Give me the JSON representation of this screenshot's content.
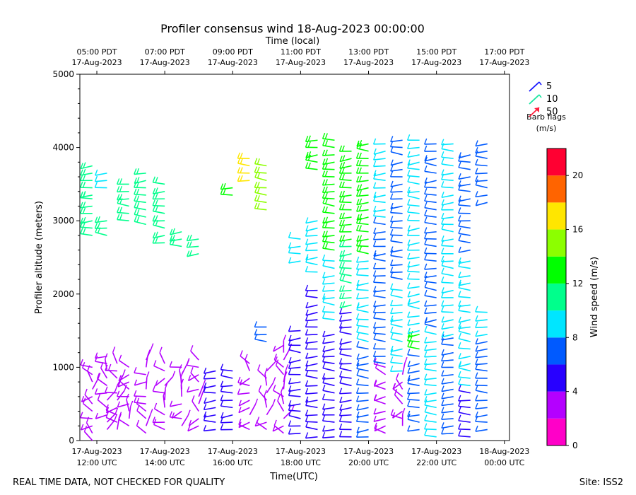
{
  "chart_data": {
    "type": "wind_barb_profile",
    "title": "Profiler consensus wind 18-Aug-2023 00:00:00",
    "top_axis_label": "Time (local)",
    "xlabel": "Time(UTC)",
    "ylabel": "Profiler altitude (meters)",
    "ylim": [
      0,
      5000
    ],
    "y_ticks": [
      0,
      1000,
      2000,
      3000,
      4000,
      5000
    ],
    "xlim_utc_hours": [
      11.5,
      24.15
    ],
    "bottom_ticks": [
      {
        "hour": 12,
        "line1": "17-Aug-2023",
        "line2": "12:00 UTC"
      },
      {
        "hour": 14,
        "line1": "17-Aug-2023",
        "line2": "14:00 UTC"
      },
      {
        "hour": 16,
        "line1": "17-Aug-2023",
        "line2": "16:00 UTC"
      },
      {
        "hour": 18,
        "line1": "17-Aug-2023",
        "line2": "18:00 UTC"
      },
      {
        "hour": 20,
        "line1": "17-Aug-2023",
        "line2": "20:00 UTC"
      },
      {
        "hour": 22,
        "line1": "17-Aug-2023",
        "line2": "22:00 UTC"
      },
      {
        "hour": 24,
        "line1": "18-Aug-2023",
        "line2": "00:00 UTC"
      }
    ],
    "top_ticks": [
      {
        "hour": 12,
        "line1": "05:00 PDT",
        "line2": "17-Aug-2023"
      },
      {
        "hour": 14,
        "line1": "07:00 PDT",
        "line2": "17-Aug-2023"
      },
      {
        "hour": 16,
        "line1": "09:00 PDT",
        "line2": "17-Aug-2023"
      },
      {
        "hour": 18,
        "line1": "11:00 PDT",
        "line2": "17-Aug-2023"
      },
      {
        "hour": 20,
        "line1": "13:00 PDT",
        "line2": "17-Aug-2023"
      },
      {
        "hour": 22,
        "line1": "15:00 PDT",
        "line2": "17-Aug-2023"
      },
      {
        "hour": 24,
        "line1": "17:00 PDT",
        "line2": "17-Aug-2023"
      }
    ],
    "barb_legend": {
      "title_line1": "Barb flags",
      "title_line2": "(m/s)",
      "entries": [
        {
          "label": "5",
          "color": "#1a1aff"
        },
        {
          "label": "10",
          "color": "#19e6a0"
        },
        {
          "label": "50",
          "color": "#ff1f3c"
        }
      ]
    },
    "colorbar": {
      "label": "Wind speed (m/s)",
      "min": 0,
      "max": 22,
      "ticks": [
        0,
        4,
        8,
        12,
        16,
        20
      ],
      "bins": [
        {
          "from": 0,
          "to": 2,
          "color": "#ff00c8"
        },
        {
          "from": 2,
          "to": 4,
          "color": "#b400ff"
        },
        {
          "from": 4,
          "to": 6,
          "color": "#2800ff"
        },
        {
          "from": 6,
          "to": 8,
          "color": "#005aff"
        },
        {
          "from": 8,
          "to": 10,
          "color": "#00e6ff"
        },
        {
          "from": 10,
          "to": 12,
          "color": "#00ff8c"
        },
        {
          "from": 12,
          "to": 14,
          "color": "#00ff00"
        },
        {
          "from": 14,
          "to": 16,
          "color": "#8cff00"
        },
        {
          "from": 16,
          "to": 18,
          "color": "#ffe600"
        },
        {
          "from": 18,
          "to": 20,
          "color": "#ff6400"
        },
        {
          "from": 20,
          "to": 22,
          "color": "#ff0032"
        }
      ]
    },
    "columns": [
      {
        "hour": 11.87,
        "segments": [
          {
            "z": [
              0,
              1000
            ],
            "speed": 3
          },
          {
            "z": [
              2800,
              3300
            ],
            "speed": 11
          },
          {
            "z": [
              3350,
              3800
            ],
            "speed": 10
          }
        ]
      },
      {
        "hour": 12.3,
        "segments": [
          {
            "z": [
              150,
              1150
            ],
            "speed": 3
          },
          {
            "z": [
              2800,
              3000
            ],
            "speed": 11
          },
          {
            "z": [
              3450,
              3700
            ],
            "speed": 9
          }
        ]
      },
      {
        "hour": 12.6,
        "segments": [
          {
            "z": [
              150,
              1050
            ],
            "speed": 3
          }
        ]
      },
      {
        "hour": 12.95,
        "segments": [
          {
            "z": [
              200,
              1000
            ],
            "speed": 2
          },
          {
            "z": [
              3000,
              3500
            ],
            "speed": 10
          }
        ]
      },
      {
        "hour": 13.45,
        "segments": [
          {
            "z": [
              100,
              1100
            ],
            "speed": 3
          },
          {
            "z": [
              2950,
              3700
            ],
            "speed": 10
          }
        ]
      },
      {
        "hour": 14.0,
        "segments": [
          {
            "z": [
              150,
              1100
            ],
            "speed": 3
          },
          {
            "z": [
              2700,
              3500
            ],
            "speed": 10
          }
        ]
      },
      {
        "hour": 14.5,
        "segments": [
          {
            "z": [
              200,
              1050
            ],
            "speed": 3
          },
          {
            "z": [
              2650,
              2900
            ],
            "speed": 10
          }
        ]
      },
      {
        "hour": 15.0,
        "segments": [
          {
            "z": [
              200,
              1100
            ],
            "speed": 3
          },
          {
            "z": [
              2550,
              2800
            ],
            "speed": 10
          }
        ]
      },
      {
        "hour": 15.5,
        "segments": [
          {
            "z": [
              150,
              1000
            ],
            "speed": 5
          }
        ]
      },
      {
        "hour": 16.0,
        "segments": [
          {
            "z": [
              150,
              950
            ],
            "speed": 5
          },
          {
            "z": [
              3350,
              3500
            ],
            "speed": 13
          }
        ]
      },
      {
        "hour": 16.5,
        "segments": [
          {
            "z": [
              150,
              1100
            ],
            "speed": 2
          },
          {
            "z": [
              3550,
              3850
            ],
            "speed": 16
          }
        ]
      },
      {
        "hour": 17.0,
        "segments": [
          {
            "z": [
              150,
              950
            ],
            "speed": 2
          },
          {
            "z": [
              1350,
              1600
            ],
            "speed": 6
          },
          {
            "z": [
              3150,
              3750
            ],
            "speed": 14
          }
        ]
      },
      {
        "hour": 17.5,
        "segments": [
          {
            "z": [
              100,
              1300
            ],
            "speed": 3
          }
        ]
      },
      {
        "hour": 18.0,
        "segments": [
          {
            "z": [
              100,
              1500
            ],
            "speed": 4
          },
          {
            "z": [
              2450,
              2750
            ],
            "speed": 9
          }
        ]
      },
      {
        "hour": 18.5,
        "segments": [
          {
            "z": [
              50,
              2100
            ],
            "speed": 5
          },
          {
            "z": [
              2300,
              3000
            ],
            "speed": 9
          },
          {
            "z": [
              3700,
              4100
            ],
            "speed": 13
          }
        ]
      },
      {
        "hour": 19.0,
        "segments": [
          {
            "z": [
              50,
              1500
            ],
            "speed": 4
          },
          {
            "z": [
              1650,
              2500
            ],
            "speed": 8
          },
          {
            "z": [
              2600,
              4100
            ],
            "speed": 12
          }
        ]
      },
      {
        "hour": 19.5,
        "segments": [
          {
            "z": [
              50,
              1800
            ],
            "speed": 5
          },
          {
            "z": [
              1850,
              2700
            ],
            "speed": 10
          },
          {
            "z": [
              2750,
              4000
            ],
            "speed": 12
          }
        ]
      },
      {
        "hour": 20.0,
        "segments": [
          {
            "z": [
              50,
              1300
            ],
            "speed": 6
          },
          {
            "z": [
              1350,
              2500
            ],
            "speed": 9
          },
          {
            "z": [
              2550,
              4100
            ],
            "speed": 13
          }
        ]
      },
      {
        "hour": 20.5,
        "segments": [
          {
            "z": [
              100,
              1000
            ],
            "speed": 2
          },
          {
            "z": [
              1050,
              3000
            ],
            "speed": 7
          },
          {
            "z": [
              3050,
              4100
            ],
            "speed": 9
          }
        ]
      },
      {
        "hour": 21.0,
        "segments": [
          {
            "z": [
              200,
              900
            ],
            "speed": 3
          },
          {
            "z": [
              950,
              2100
            ],
            "speed": 9
          },
          {
            "z": [
              2200,
              4100
            ],
            "speed": 7
          }
        ]
      },
      {
        "hour": 21.5,
        "segments": [
          {
            "z": [
              150,
              1200
            ],
            "speed": 6
          },
          {
            "z": [
              1250,
              1450
            ],
            "speed": 12
          },
          {
            "z": [
              1500,
              4100
            ],
            "speed": 8
          }
        ]
      },
      {
        "hour": 22.0,
        "segments": [
          {
            "z": [
              50,
              1500
            ],
            "speed": 9
          },
          {
            "z": [
              1550,
              4100
            ],
            "speed": 7
          }
        ]
      },
      {
        "hour": 22.5,
        "segments": [
          {
            "z": [
              100,
              1400
            ],
            "speed": 6
          },
          {
            "z": [
              1450,
              4100
            ],
            "speed": 8
          }
        ]
      },
      {
        "hour": 23.0,
        "segments": [
          {
            "z": [
              50,
              700
            ],
            "speed": 4
          },
          {
            "z": [
              750,
              2500
            ],
            "speed": 9
          },
          {
            "z": [
              2600,
              3900
            ],
            "speed": 7
          }
        ]
      },
      {
        "hour": 23.5,
        "segments": [
          {
            "z": [
              150,
              1400
            ],
            "speed": 6
          },
          {
            "z": [
              1450,
              1750
            ],
            "speed": 8
          },
          {
            "z": [
              3250,
              4100
            ],
            "speed": 6
          }
        ]
      }
    ]
  },
  "footer": {
    "left_text": "REAL TIME DATA, NOT CHECKED FOR QUALITY",
    "right_text": "Site: ISS2"
  }
}
